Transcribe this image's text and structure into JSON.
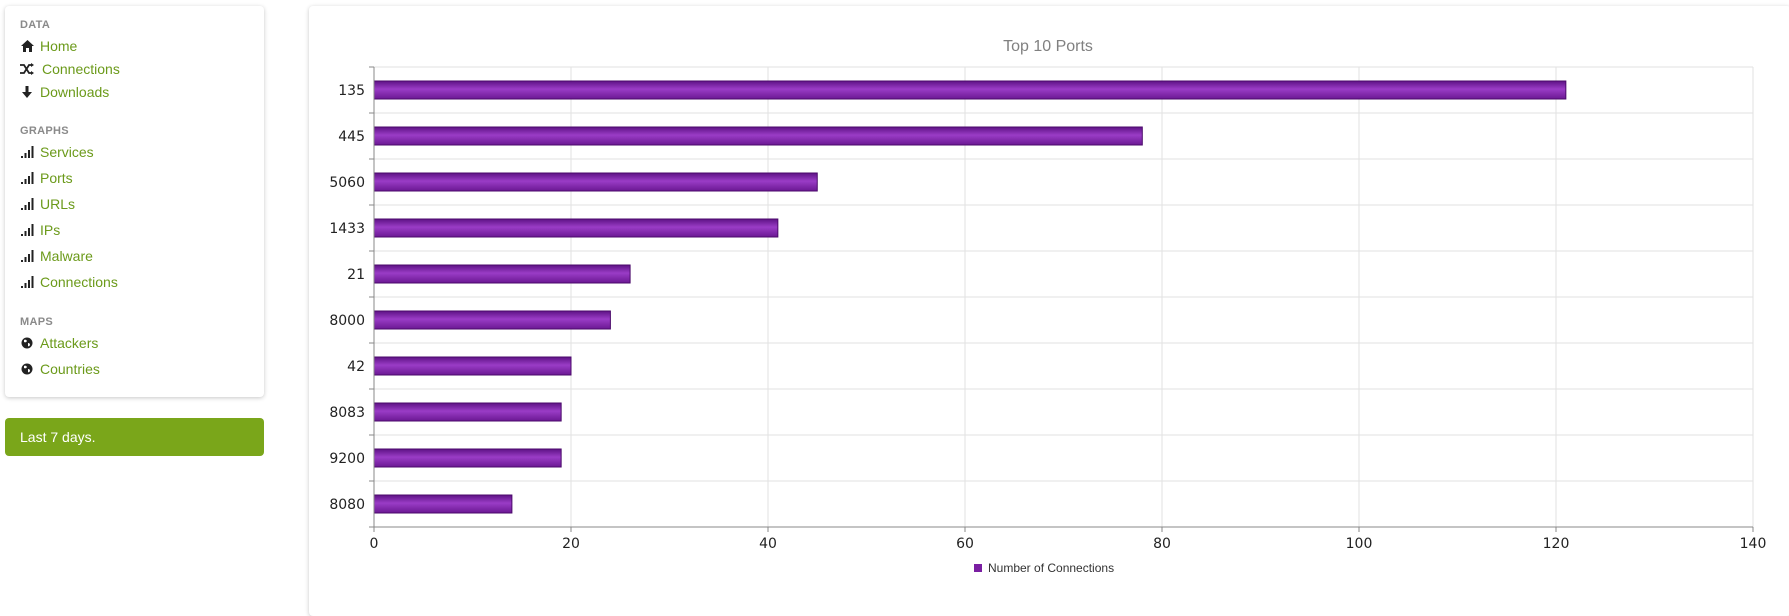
{
  "sidebar": {
    "sections": [
      {
        "title": "DATA",
        "items": [
          {
            "label": "Home",
            "icon": "home-icon"
          },
          {
            "label": "Connections",
            "icon": "shuffle-icon"
          },
          {
            "label": "Downloads",
            "icon": "download-icon"
          }
        ]
      },
      {
        "title": "GRAPHS",
        "items": [
          {
            "label": "Services",
            "icon": "signal-icon"
          },
          {
            "label": "Ports",
            "icon": "signal-icon"
          },
          {
            "label": "URLs",
            "icon": "signal-icon"
          },
          {
            "label": "IPs",
            "icon": "signal-icon"
          },
          {
            "label": "Malware",
            "icon": "signal-icon"
          },
          {
            "label": "Connections",
            "icon": "signal-icon"
          }
        ]
      },
      {
        "title": "MAPS",
        "items": [
          {
            "label": "Attackers",
            "icon": "globe-icon"
          },
          {
            "label": "Countries",
            "icon": "globe-icon"
          }
        ]
      }
    ]
  },
  "status": {
    "text": "Last 7 days."
  },
  "colors": {
    "link": "#6b9a1a",
    "status_bg": "#7aa61a",
    "bar": "#7a1fa2",
    "bar_dark": "#4b0a6b"
  },
  "chart_data": {
    "type": "bar",
    "orientation": "horizontal",
    "title": "Top 10 Ports",
    "categories": [
      "135",
      "445",
      "5060",
      "1433",
      "21",
      "8000",
      "42",
      "8083",
      "9200",
      "8080"
    ],
    "series": [
      {
        "name": "Number of Connections",
        "values": [
          121,
          78,
          45,
          41,
          26,
          24,
          20,
          19,
          19,
          14
        ]
      }
    ],
    "xlim": [
      0,
      140
    ],
    "xticks": [
      0,
      20,
      40,
      60,
      80,
      100,
      120,
      140
    ],
    "grid": true,
    "legend_position": "bottom-center"
  }
}
